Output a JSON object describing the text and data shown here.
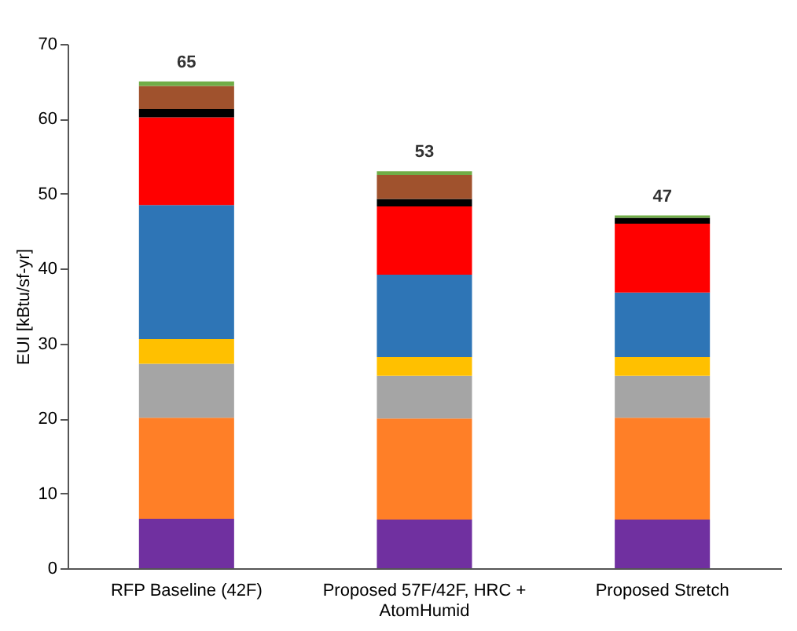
{
  "chart_data": {
    "type": "bar",
    "stacked": true,
    "ylabel": "EUI [kBtu/sf-yr]",
    "categories": [
      "RFP Baseline (42F)",
      "Proposed 57F/42F, HRC + AtomHumid",
      "Proposed Stretch"
    ],
    "series": [
      {
        "color": "#7030a0",
        "values": [
          6.6,
          6.5,
          6.5
        ]
      },
      {
        "color": "#ff7f27",
        "values": [
          13.5,
          13.5,
          13.6
        ]
      },
      {
        "color": "#a5a5a5",
        "values": [
          7.2,
          5.7,
          5.6
        ]
      },
      {
        "color": "#ffc000",
        "values": [
          3.3,
          2.5,
          2.5
        ]
      },
      {
        "color": "#2e75b6",
        "values": [
          17.9,
          11.0,
          8.6
        ]
      },
      {
        "color": "#ff0000",
        "values": [
          11.7,
          9.1,
          9.2
        ]
      },
      {
        "color": "#000000",
        "values": [
          1.1,
          1.0,
          0.8
        ]
      },
      {
        "color": "#a0522d",
        "values": [
          3.1,
          3.2,
          0
        ]
      },
      {
        "color": "#70ad47",
        "values": [
          0.6,
          0.5,
          0.3
        ]
      }
    ],
    "totals": [
      "65",
      "53",
      "47"
    ],
    "ylim": [
      0,
      70
    ],
    "yticks": [
      0,
      10,
      20,
      30,
      40,
      50,
      60,
      70
    ],
    "grid": false,
    "legend": false
  }
}
